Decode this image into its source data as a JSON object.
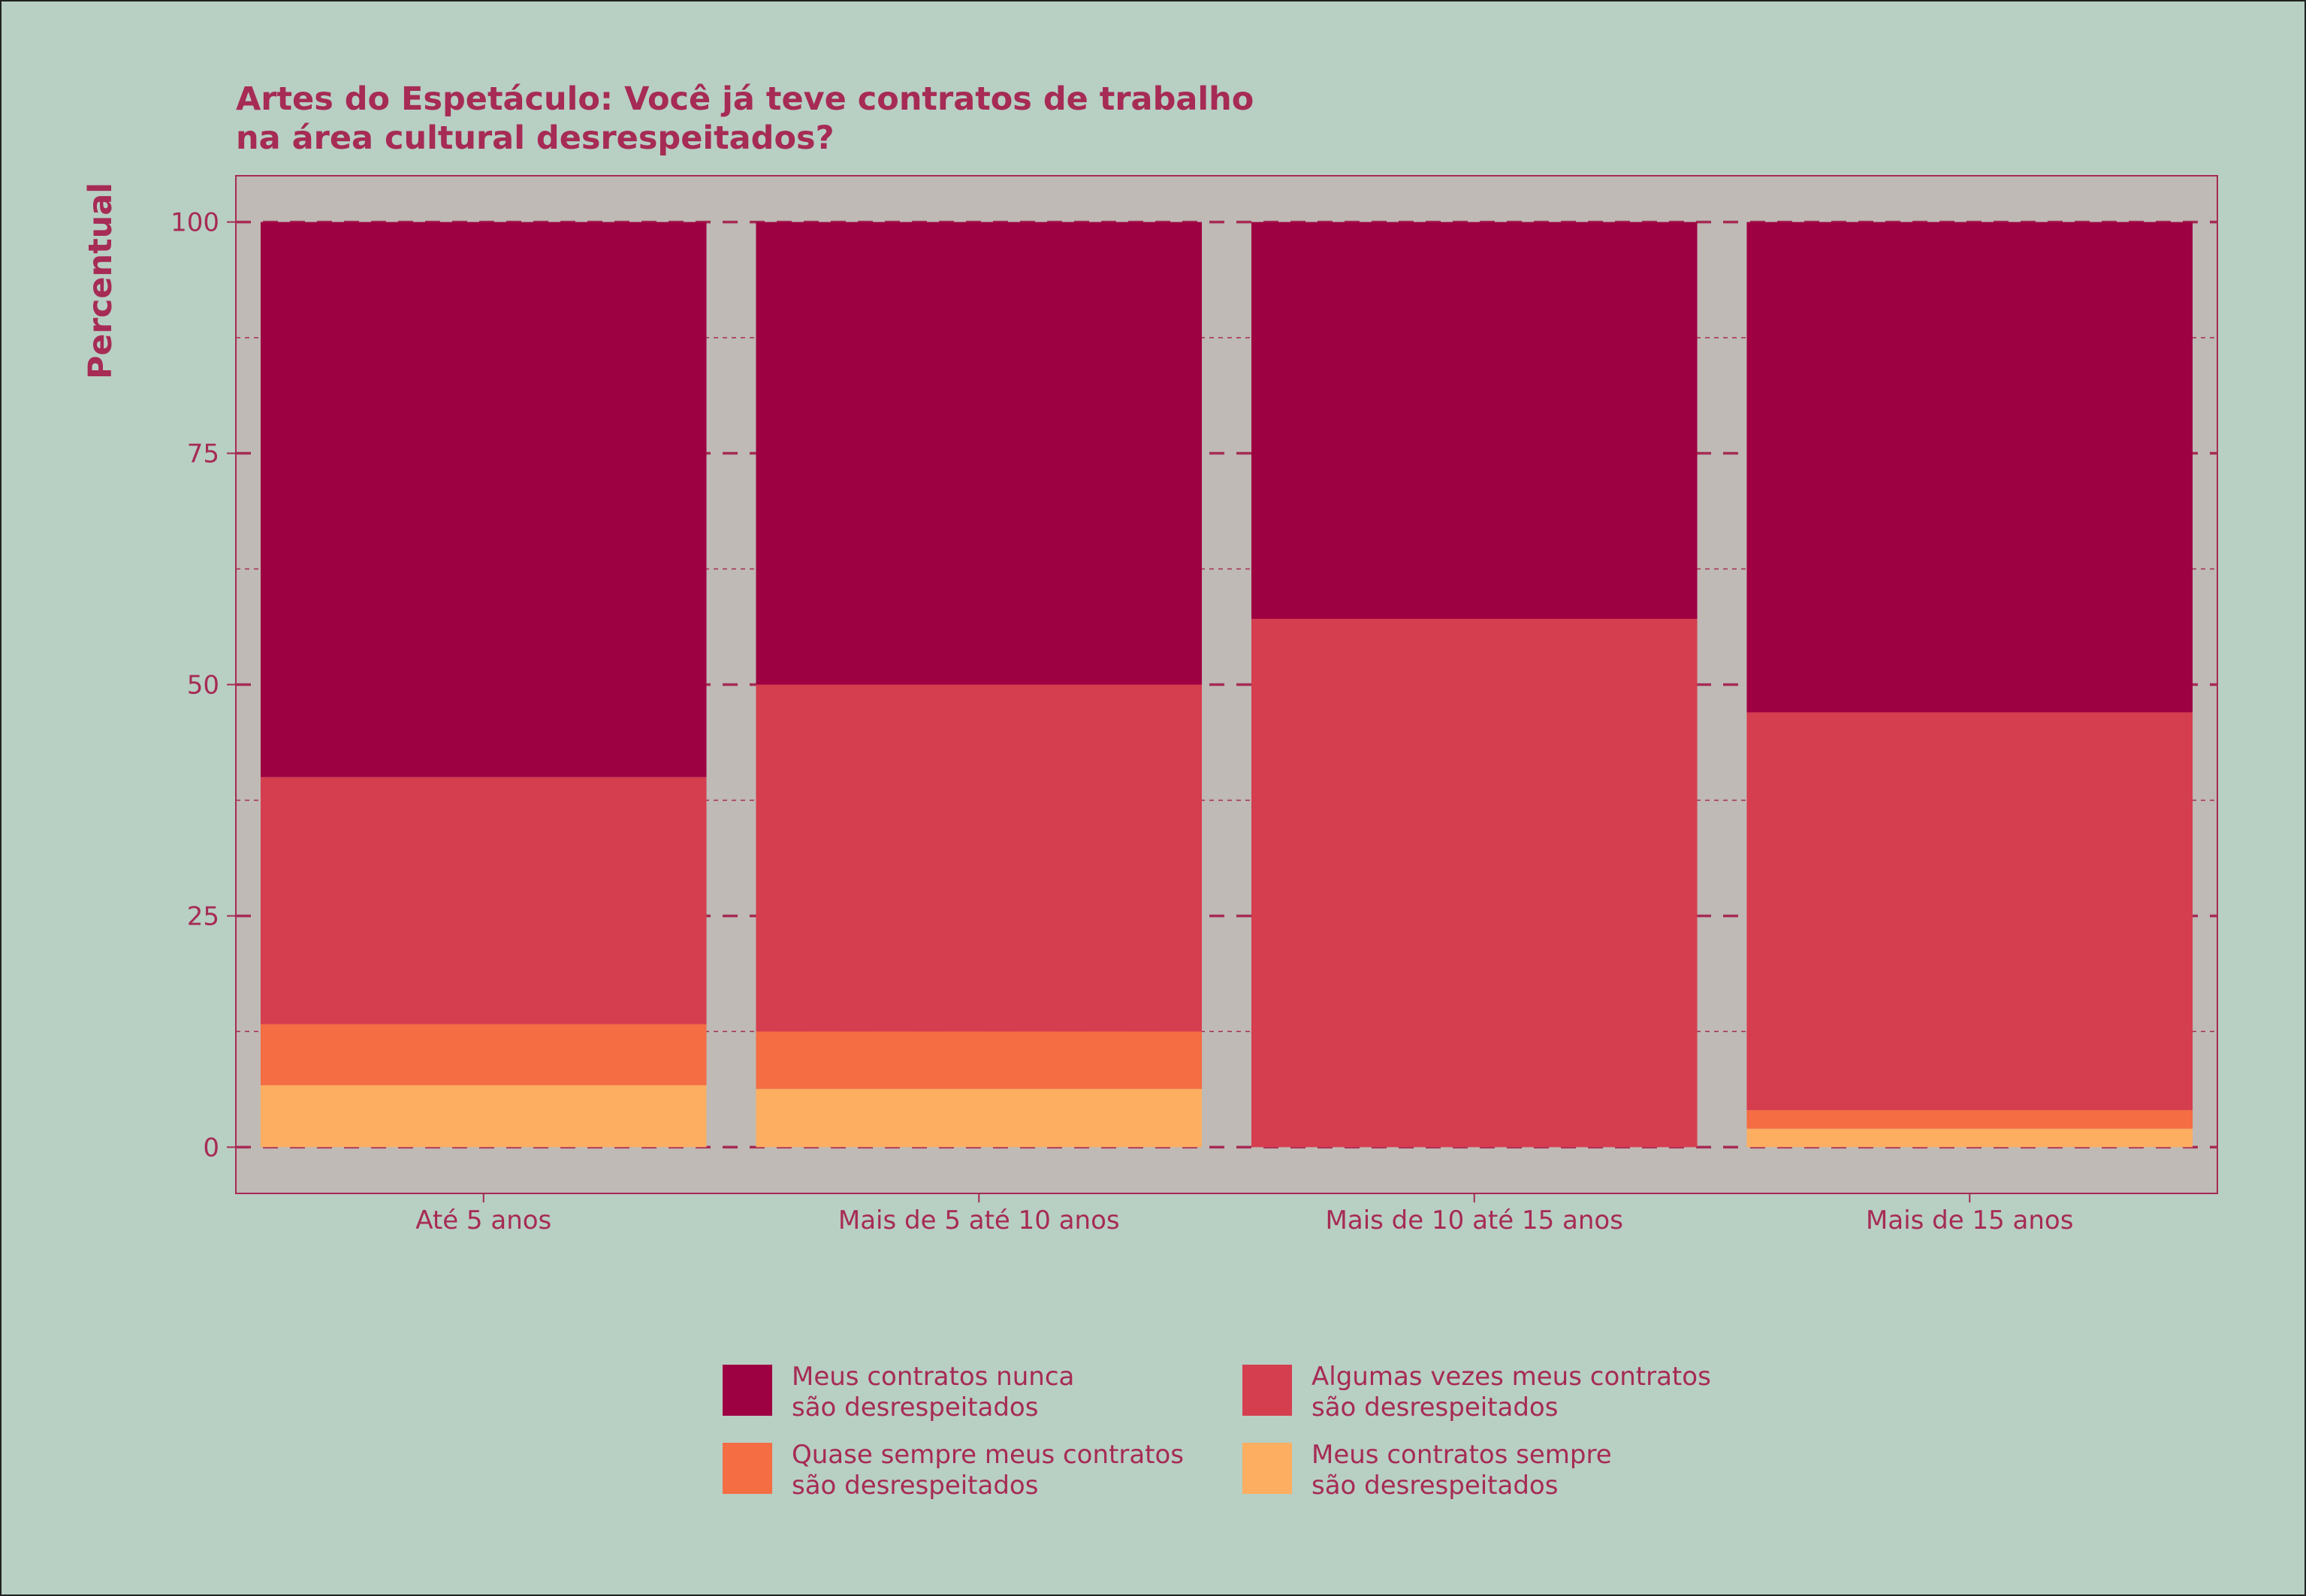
{
  "chart_data": {
    "type": "bar",
    "stacked": true,
    "title": [
      "Artes do Espetáculo: Você já teve contratos de trabalho",
      "na área cultural desrespeitados?"
    ],
    "xlabel": "",
    "ylabel": "Percentual",
    "ylim": [
      -5,
      105
    ],
    "yticks": [
      0,
      25,
      50,
      75,
      100
    ],
    "grid": true,
    "legend_position": "bottom",
    "categories": [
      "Até 5 anos",
      "Mais de 5 até 10 anos",
      "Mais de 10 até 15 anos",
      "Mais de 15 anos"
    ],
    "series": [
      {
        "name": "Meus contratos sempre\nsão desrespeitados",
        "color": "#fdae61",
        "values": [
          6.7,
          6.3,
          0,
          2.0
        ]
      },
      {
        "name": "Quase sempre meus contratos\nsão desrespeitados",
        "color": "#f46d43",
        "values": [
          6.6,
          6.2,
          0,
          2.0
        ]
      },
      {
        "name": "Algumas vezes meus contratos\nsão desrespeitados",
        "color": "#d53e4f",
        "values": [
          26.7,
          37.5,
          57.1,
          43.0
        ]
      },
      {
        "name": "Meus contratos nunca\nsão desrespeitados",
        "color": "#9e0142",
        "values": [
          60.0,
          50.0,
          42.9,
          53.0
        ]
      }
    ],
    "legend_order": [
      3,
      2,
      1,
      0
    ]
  }
}
